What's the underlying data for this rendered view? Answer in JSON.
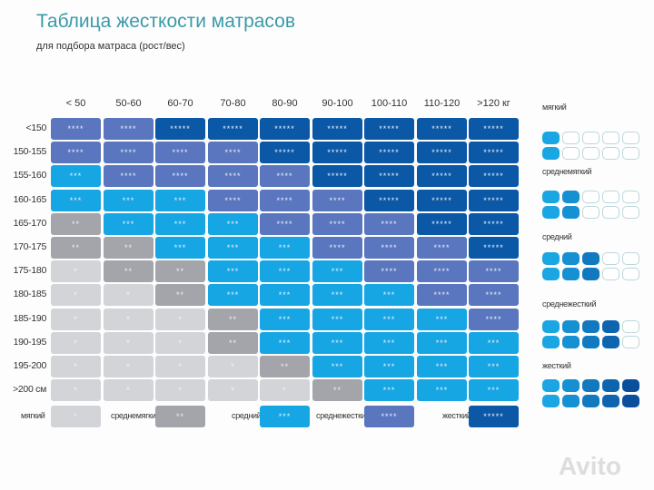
{
  "title": "Таблица жесткости матрасов",
  "subtitle": "для подбора матраса (рост/вес)",
  "columns": [
    "< 50",
    "50-60",
    "60-70",
    "70-80",
    "80-90",
    "90-100",
    "100-110",
    "110-120",
    ">120 кг"
  ],
  "rows": [
    "<150",
    "150-155",
    "155-160",
    "160-165",
    "165-170",
    "170-175",
    "175-180",
    "180-185",
    "185-190",
    "190-195",
    "195-200",
    ">200 см"
  ],
  "levels": [
    [
      4,
      4,
      5,
      5,
      5,
      5,
      5,
      5,
      5
    ],
    [
      4,
      4,
      4,
      4,
      5,
      5,
      5,
      5,
      5
    ],
    [
      3,
      4,
      4,
      4,
      4,
      5,
      5,
      5,
      5
    ],
    [
      3,
      3,
      3,
      4,
      4,
      4,
      5,
      5,
      5
    ],
    [
      2,
      3,
      3,
      3,
      4,
      4,
      4,
      5,
      5
    ],
    [
      2,
      2,
      3,
      3,
      3,
      4,
      4,
      4,
      5
    ],
    [
      1,
      2,
      2,
      3,
      3,
      3,
      4,
      4,
      4
    ],
    [
      1,
      1,
      2,
      3,
      3,
      3,
      3,
      4,
      4
    ],
    [
      1,
      1,
      1,
      2,
      3,
      3,
      3,
      3,
      4
    ],
    [
      1,
      1,
      1,
      2,
      3,
      3,
      3,
      3,
      3
    ],
    [
      1,
      1,
      1,
      1,
      2,
      3,
      3,
      3,
      3
    ],
    [
      1,
      1,
      1,
      1,
      1,
      2,
      3,
      3,
      3
    ]
  ],
  "stars": [
    "*",
    "**",
    "***",
    "****",
    "*****"
  ],
  "level_colors": [
    "#d3d4d8",
    "#a4a5aa",
    "#17a6e4",
    "#5a76bf",
    "#0b58a6"
  ],
  "scale_colors": [
    "#1aa6e2",
    "#1590d2",
    "#1179bf",
    "#0d65b0",
    "#0a4f9c"
  ],
  "legend": [
    {
      "label": "мягкий",
      "level": 1
    },
    {
      "label": "среднемягкий",
      "level": 2
    },
    {
      "label": "средний",
      "level": 3
    },
    {
      "label": "среднежесткий",
      "level": 4
    },
    {
      "label": "жесткий",
      "level": 5
    }
  ],
  "watermark": "Avito"
}
